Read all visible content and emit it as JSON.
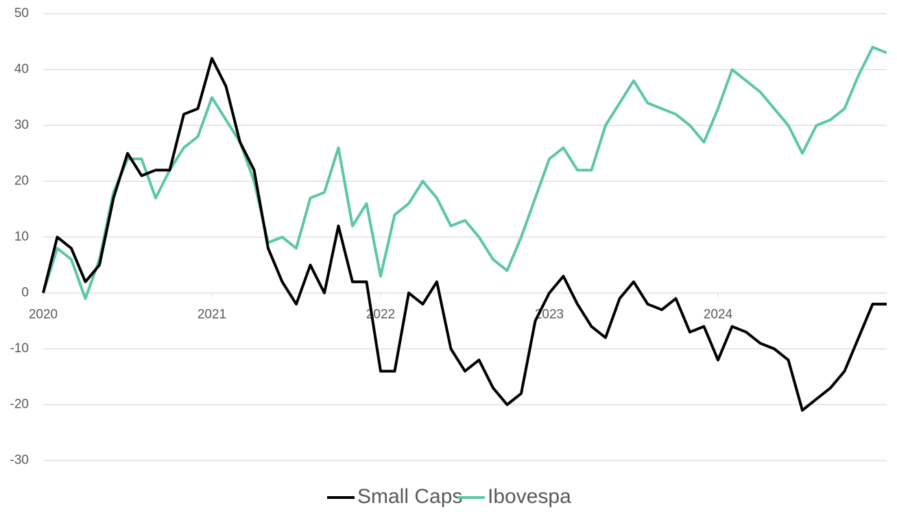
{
  "chart_data": {
    "type": "line",
    "categories": [
      "2020",
      null,
      null,
      null,
      null,
      null,
      null,
      null,
      null,
      null,
      null,
      null,
      "2021",
      null,
      null,
      null,
      null,
      null,
      null,
      null,
      null,
      null,
      null,
      null,
      "2022",
      null,
      null,
      null,
      null,
      null,
      null,
      null,
      null,
      null,
      null,
      null,
      "2023",
      null,
      null,
      null,
      null,
      null,
      null,
      null,
      null,
      null,
      null,
      null,
      "2024",
      null,
      null,
      null,
      null,
      null,
      null,
      null,
      null,
      null,
      null,
      null,
      null
    ],
    "series": [
      {
        "name": "Small Caps",
        "color": "#000000",
        "values": [
          0,
          10,
          8,
          2,
          5,
          17,
          25,
          21,
          22,
          22,
          32,
          33,
          42,
          37,
          27,
          22,
          8,
          2,
          -2,
          5,
          0,
          12,
          2,
          2,
          -14,
          -14,
          0,
          -2,
          2,
          -10,
          -14,
          -12,
          -17,
          -20,
          -18,
          -5,
          0,
          3,
          -2,
          -6,
          -8,
          -1,
          2,
          -2,
          -3,
          -1,
          -7,
          -6,
          -12,
          -6,
          -7,
          -9,
          -10,
          -12,
          -21,
          -19,
          -17,
          -14,
          -8,
          -2,
          -2
        ]
      },
      {
        "name": "Ibovespa",
        "color": "#5cc6a8",
        "values": [
          0,
          8,
          6,
          -1,
          6,
          18,
          24,
          24,
          17,
          22,
          26,
          28,
          35,
          31,
          27,
          20,
          9,
          10,
          8,
          17,
          18,
          26,
          12,
          16,
          3,
          14,
          16,
          20,
          17,
          12,
          13,
          10,
          6,
          4,
          10,
          17,
          24,
          26,
          22,
          22,
          30,
          34,
          38,
          34,
          33,
          32,
          30,
          27,
          33,
          40,
          38,
          36,
          33,
          30,
          25,
          30,
          31,
          33,
          39,
          44,
          43
        ]
      }
    ],
    "ylim": [
      -30,
      50
    ],
    "yticks": [
      -30,
      -20,
      -10,
      0,
      10,
      20,
      30,
      40,
      50
    ],
    "grid": true,
    "legend": "bottom"
  }
}
